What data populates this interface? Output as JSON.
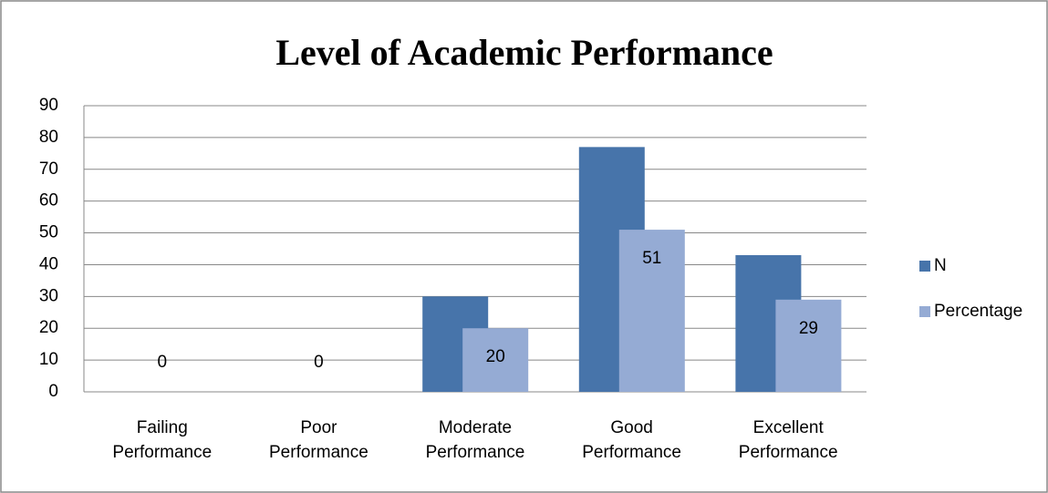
{
  "chart_data": {
    "type": "bar",
    "title": "Level of Academic Performance",
    "categories": [
      "Failing Performance",
      "Poor Performance",
      "Moderate Performance",
      "Good Performance",
      "Excellent Performance"
    ],
    "series": [
      {
        "name": "N",
        "color": "#4774aa",
        "values": [
          0,
          0,
          30,
          77,
          43
        ]
      },
      {
        "name": "Percentage",
        "color": "#95abd4",
        "values": [
          0,
          0,
          20,
          51,
          29
        ]
      }
    ],
    "ylim": [
      0,
      90
    ],
    "yticks": [
      0,
      10,
      20,
      30,
      40,
      50,
      60,
      70,
      80,
      90
    ],
    "grid": true,
    "legend": "right"
  }
}
